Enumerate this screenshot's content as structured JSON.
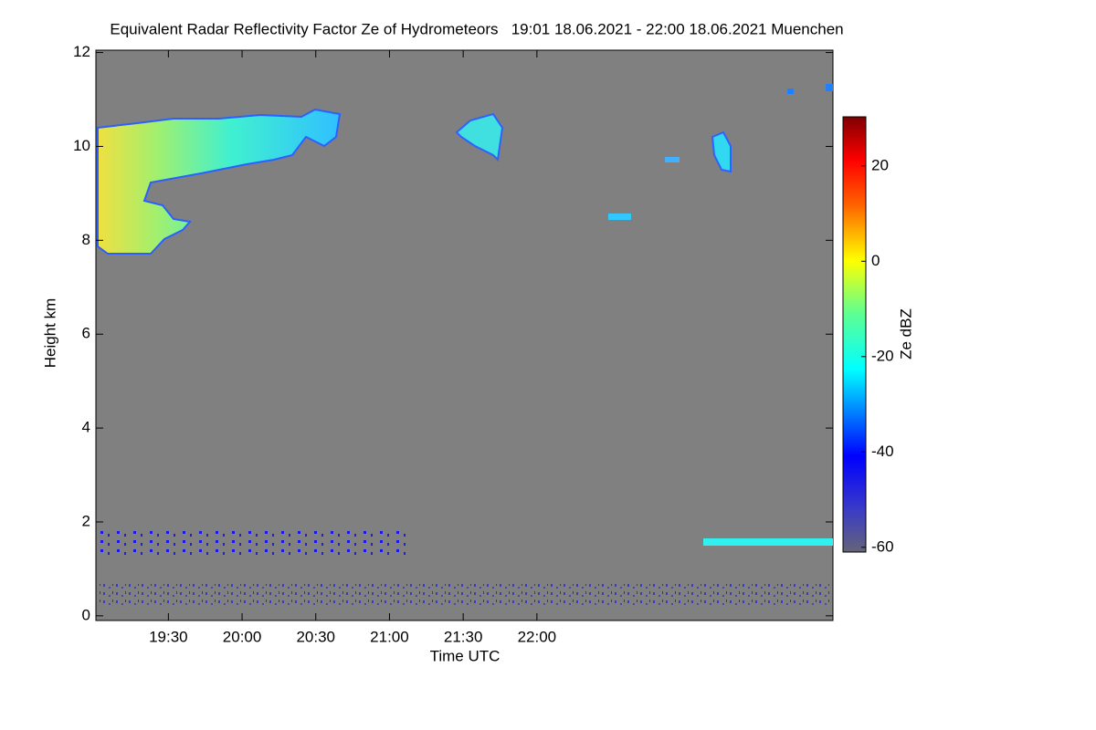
{
  "chart_data": {
    "type": "heatmap",
    "title": "Equivalent Radar Reflectivity Factor Ze of Hydrometeors   19:01 18.06.2021 - 22:00 18.06.2021 Muenchen",
    "x_label": "Time UTC",
    "y_label": "Height km",
    "colorbar_label": "Ze dBZ",
    "xlim": [
      1140.5,
      1440.5
    ],
    "xticks": [
      {
        "value": 1170,
        "label": "19:30"
      },
      {
        "value": 1200,
        "label": "20:00"
      },
      {
        "value": 1230,
        "label": "20:30"
      },
      {
        "value": 1260,
        "label": "21:00"
      },
      {
        "value": 1290,
        "label": "21:30"
      },
      {
        "value": 1320,
        "label": "22:00"
      }
    ],
    "ylim": [
      -0.1,
      12.05
    ],
    "yticks": [
      0,
      2,
      4,
      6,
      8,
      10,
      12
    ],
    "zlim": [
      -61,
      30.3
    ],
    "zticks": [
      -60,
      -40,
      -20,
      0,
      20
    ]
  }
}
